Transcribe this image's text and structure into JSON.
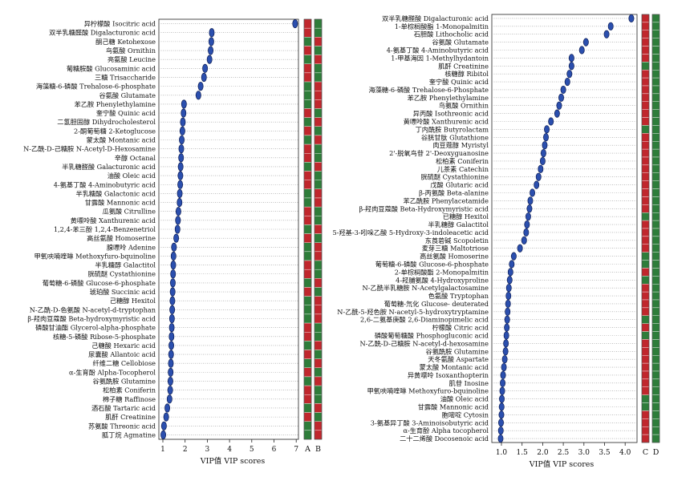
{
  "chart_data": [
    {
      "type": "scatter",
      "panel": "left",
      "xlabel": "VIP值 VIP scores",
      "xlim": [
        1,
        7.05
      ],
      "xticks": [
        "1",
        "2",
        "3",
        "4",
        "5",
        "6",
        "7"
      ],
      "heat_labels": [
        "A",
        "B"
      ],
      "colors": {
        "high": "#c0272d",
        "low": "#2e7d3a",
        "point": "#2b4fae"
      },
      "metabolites": [
        "异柠檬酸 Isocitric acid",
        "双半乳糖醛酸 Digalacturonic acid",
        "酮己糖 Ketohexose",
        "鸟氨酸 Ornithin",
        "亮氨酸 Leucine",
        "葡糖胺酸 Glucosaminic acid",
        "三糖 Trisaccharide",
        "海藻糖-6-磷酸 Trehalose-6-phosphate",
        "谷氨酸 Glutamate",
        "苯乙胺 Phenylethylamine",
        "奎宁酸 Quinic acid",
        "二氢胆固醇 Dihydrocholesterol",
        "2-酮葡萄糖 2-Ketoglucose",
        "蒙太酸 Montanic acid",
        "N-乙酰-D-己糖胺 N-Acetyl-D-Hexosamine",
        "辛醇 Octanal",
        "半乳糖醛酸 Galacturonic acid",
        "油酸 Oleic acid",
        "4-氨基丁酸 4-Aminobutyric acid",
        "半乳糖酸 Galactonic acid",
        "甘露酸 Mannonic acid",
        "瓜氨酸 Citrulline",
        "黄嘌呤酸 Xanthurenic acid",
        "1,2,4-苯三酚 1,2,4-Benzenetriol",
        "高丝氨酸 Homoserine",
        "腺嘌呤 Adenine",
        "甲氧呋喃喹啉 Methoxyfuro-bquinoline",
        "半乳糖醇 Galactitol",
        "胱硫醚 Cystathionine",
        "葡萄糖-6-磷酸 Glucose-6-phosphate",
        "琥珀酸 Succinic acid",
        "己糖醇 Hexitol",
        "N-乙酰-D-色氨酸 N-acetyl-d-tryptophan",
        "β-羟肉豆蔻酸 Beta-hydroxymyristic acid",
        "磷酸甘油酯 Glycerol-alpha-phosphate",
        "核糖-5-磷酸 Ribose-5-phosphate",
        "己糖酸 Hexaric acid",
        "尿囊酸 Allantoic acid",
        "纤维二糖 Cellobiose",
        "α-生育酚 Alpha-Tocopherol",
        "谷氨酰胺 Glutamine",
        "松柏素 Coniferin",
        "棉子糖 Raffinose",
        "酒石酸 Tartaric acid",
        "肌酐 Creatinine",
        "苏氨酸 Threonic acid",
        "胍丁烷 Agmatine"
      ],
      "vip": [
        6.95,
        3.2,
        3.18,
        3.15,
        3.1,
        2.9,
        2.85,
        2.7,
        2.6,
        1.95,
        1.93,
        1.9,
        1.88,
        1.85,
        1.83,
        1.82,
        1.8,
        1.79,
        1.78,
        1.76,
        1.75,
        1.7,
        1.68,
        1.66,
        1.6,
        1.5,
        1.48,
        1.47,
        1.46,
        1.45,
        1.44,
        1.43,
        1.42,
        1.41,
        1.4,
        1.39,
        1.38,
        1.37,
        1.36,
        1.35,
        1.34,
        1.33,
        1.3,
        1.2,
        1.15,
        1.05,
        1.02
      ],
      "heat_A": [
        "H",
        "H",
        "L",
        "H",
        "L",
        "H",
        "H",
        "L",
        "L",
        "L",
        "H",
        "L",
        "H",
        "L",
        "H",
        "H",
        "L",
        "H",
        "H",
        "L",
        "L",
        "H",
        "H",
        "L",
        "H",
        "L",
        "L",
        "H",
        "H",
        "L",
        "H",
        "L",
        "L",
        "L",
        "H",
        "H",
        "L",
        "H",
        "L",
        "H",
        "L",
        "H",
        "H",
        "L",
        "H",
        "L",
        "L"
      ],
      "heat_B": [
        "L",
        "L",
        "H",
        "L",
        "H",
        "L",
        "L",
        "H",
        "H",
        "H",
        "L",
        "H",
        "L",
        "H",
        "L",
        "L",
        "H",
        "L",
        "L",
        "H",
        "H",
        "L",
        "L",
        "H",
        "L",
        "H",
        "H",
        "L",
        "L",
        "H",
        "L",
        "H",
        "H",
        "H",
        "L",
        "L",
        "H",
        "L",
        "H",
        "L",
        "H",
        "L",
        "L",
        "H",
        "L",
        "H",
        "H"
      ]
    },
    {
      "type": "scatter",
      "panel": "right",
      "xlabel": "VIP值 VIP scores",
      "xlim": [
        0.95,
        4.25
      ],
      "xticks": [
        "1.0",
        "1.5",
        "2.0",
        "2.5",
        "3.0",
        "3.5",
        "4.0"
      ],
      "heat_labels": [
        "C",
        "D"
      ],
      "colors": {
        "high": "#c0272d",
        "low": "#2e7d3a",
        "point": "#2b4fae"
      },
      "metabolites": [
        "双半乳糖醛酸 Digalacturonic acid",
        "1-单棕榈酸酯 1-Monopalmitin",
        "石胆酸 Lithocholic acid",
        "谷氨酸 Glutamate",
        "4-氨基丁酸 4-Aminobutyric acid",
        "1-甲基海因 1-Methylhydantoin",
        "肌酐 Creatinine",
        "核糖醇 Ribitol",
        "奎宁酸 Quinic acid",
        "海藻糖-6-磷酸 Trehalose-6-Phosphate",
        "苯乙胺 Phenylethylamine",
        "鸟氨酸 Ornithin",
        "异丙酸 Isothreonic acid",
        "黄嘌呤酸 Xanthurenic acid",
        "丁内酰胺 Butyrolactam",
        "谷胱甘肽 Glutathione",
        "肉豆蔻醇 Myristyl",
        "2'-脱氧鸟苷 2'-Deoxyguanosine",
        "松柏素 Coniferin",
        "儿茶素 Catechin",
        "胱硫醚 Cystathionine",
        "戊酸 Glutaric acid",
        "β-丙氨酸 Beta-alanine",
        "苯乙酰胺 Phenylacetamide",
        "β-羟肉豆蔻酸 Beta-Hydroxymyristic acid",
        "已糖醇 Hexitol",
        "半乳糖醇 Galactitol",
        "5-羟基-3-吲哚乙酸 5-Hydroxy-3-indoleacetic acid",
        "东莨菪碱 Scopoletin",
        "麦芽三糖 Maltotriose",
        "高丝氨酸 Homoserine",
        "葡萄糖-6-磷酸 Glucose-6-phosphate",
        "2-单棕榈酸酯 2-Monopalmitin",
        "4-羟脯氨酸 4-Hydroxyproline",
        "N-乙酰半乳糖胺 N-Acetylgalactosamine",
        "色氨酸 Tryptophan",
        "葡萄糖-氘化 Glucose- deuterated",
        "N-乙酰-5-羟色胺 N-acetyl-5-hydroxytryptamine",
        "2,6-二氨基庚酸 2,6-Diaminopimelic acid",
        "柠檬酸 Citric acid",
        "磷酸葡萄糖酸 Phosphogluconic acid",
        "N-乙酰-D-己糖胺 N-acetyl-d-hexosamine",
        "谷氨酰胺 Glutamine",
        "天冬氨酸 Aspartate",
        "蒙太酸 Montanic acid",
        "异黄嘌呤 Isoxanthopterin",
        "肌苷 Inosine",
        "甲氧呋喃喹啉 Methoxyfuro-bquinoline",
        "油酸 Oleic acid",
        "甘露酸 Mannonic acid",
        "胞嘧啶 Cytosin",
        "3-氨基异丁酸 3-Aminoisobutyric acid",
        "α-生育酚 Alpha tocopherol",
        "二十二烯酸 Docosenoic acid"
      ],
      "vip": [
        4.15,
        3.65,
        3.55,
        3.05,
        2.95,
        2.7,
        2.7,
        2.65,
        2.6,
        2.5,
        2.45,
        2.4,
        2.35,
        2.2,
        2.1,
        2.08,
        2.05,
        2.02,
        2.0,
        1.95,
        1.9,
        1.85,
        1.75,
        1.7,
        1.68,
        1.65,
        1.62,
        1.6,
        1.55,
        1.45,
        1.3,
        1.25,
        1.22,
        1.2,
        1.18,
        1.17,
        1.16,
        1.15,
        1.14,
        1.13,
        1.12,
        1.11,
        1.1,
        1.08,
        1.06,
        1.04,
        1.03,
        1.02,
        1.01,
        1.005,
        1.0,
        0.99,
        0.985,
        0.98
      ],
      "heat_C": [
        "H",
        "H",
        "H",
        "H",
        "H",
        "H",
        "L",
        "H",
        "H",
        "H",
        "H",
        "H",
        "H",
        "H",
        "L",
        "H",
        "H",
        "H",
        "H",
        "H",
        "H",
        "H",
        "H",
        "H",
        "H",
        "L",
        "H",
        "H",
        "H",
        "H",
        "L",
        "L",
        "H",
        "L",
        "H",
        "H",
        "H",
        "H",
        "L",
        "H",
        "L",
        "H",
        "H",
        "H",
        "H",
        "H",
        "H",
        "H",
        "L",
        "L",
        "H",
        "H",
        "H",
        "H"
      ],
      "heat_D": [
        "L",
        "L",
        "L",
        "L",
        "L",
        "L",
        "L",
        "L",
        "L",
        "L",
        "L",
        "L",
        "L",
        "L",
        "L",
        "L",
        "L",
        "L",
        "L",
        "L",
        "L",
        "L",
        "L",
        "L",
        "L",
        "L",
        "L",
        "L",
        "L",
        "L",
        "L",
        "L",
        "L",
        "L",
        "L",
        "L",
        "L",
        "L",
        "L",
        "L",
        "L",
        "L",
        "L",
        "L",
        "L",
        "L",
        "L",
        "L",
        "L",
        "L",
        "L",
        "L",
        "L",
        "L"
      ]
    }
  ]
}
